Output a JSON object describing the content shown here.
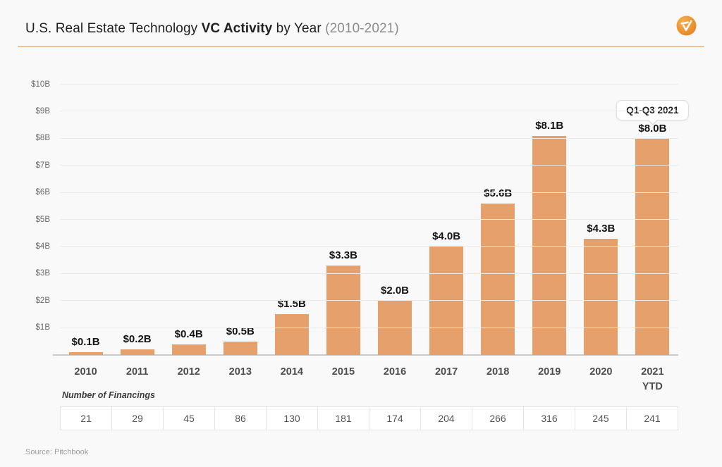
{
  "colors": {
    "background": "#F9F9F9",
    "bar": "#E6A06C",
    "accent_rule": "#F1C190",
    "logo_orange": "#ED8F2E"
  },
  "header": {
    "title_prefix": "U.S. Real Estate Technology ",
    "title_bold": "VC Activity",
    "title_mid": " by Year ",
    "title_paren": "(2010-2021)",
    "logo_icon": "checkmark-circle-logo"
  },
  "chart_data": {
    "type": "bar",
    "title": "U.S. Real Estate Technology VC Activity by Year (2010-2021)",
    "xlabel": "",
    "ylabel": "",
    "categories": [
      "2010",
      "2011",
      "2012",
      "2013",
      "2014",
      "2015",
      "2016",
      "2017",
      "2018",
      "2019",
      "2020",
      "2021\nYTD"
    ],
    "values": [
      0.1,
      0.2,
      0.4,
      0.5,
      1.5,
      3.3,
      2.0,
      4.0,
      5.6,
      8.1,
      4.3,
      8.0
    ],
    "value_labels": [
      "$0.1B",
      "$0.2B",
      "$0.4B",
      "$0.5B",
      "$1.5B",
      "$3.3B",
      "$2.0B",
      "$4.0B",
      "$5.6B",
      "$8.1B",
      "$4.3B",
      "$8.0B"
    ],
    "yaxis": {
      "min": 0,
      "max": 10,
      "ticks": [
        "$1B",
        "$2B",
        "$3B",
        "$4B",
        "$5B",
        "$6B",
        "$7B",
        "$8B",
        "$9B",
        "$10B"
      ]
    },
    "grid": "horizontal",
    "legend": "none",
    "annotation": {
      "text": "Q1-Q3 2021",
      "target_category": "2021 YTD",
      "anchor_index": 11
    }
  },
  "financings": {
    "label": "Number of Financings",
    "values": [
      21,
      29,
      45,
      86,
      130,
      181,
      174,
      204,
      266,
      316,
      245,
      241
    ]
  },
  "source": "Source: Pitchbook"
}
